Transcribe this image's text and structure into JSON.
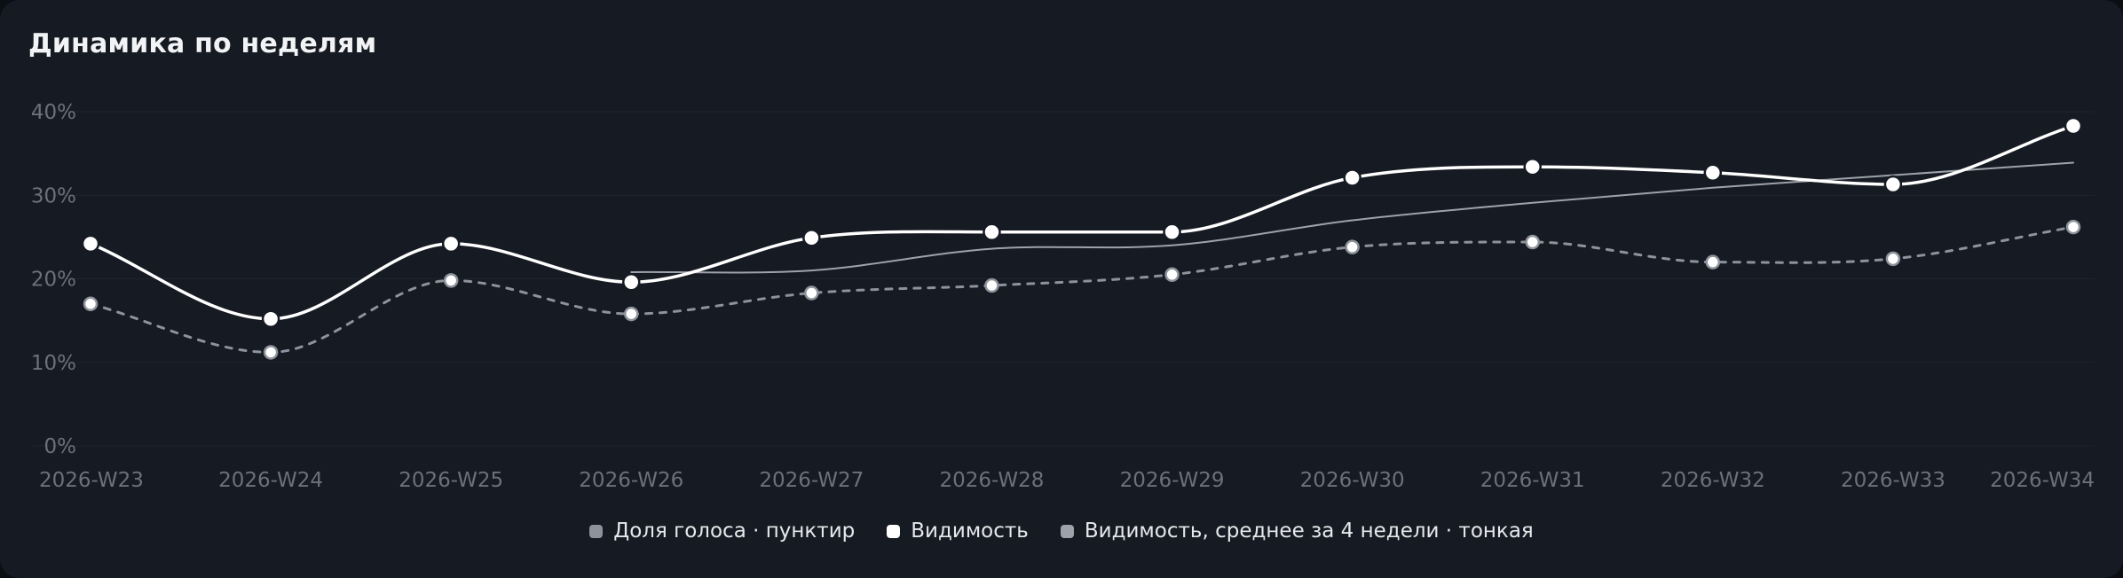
{
  "title": "Динамика по неделям",
  "legend": {
    "share": "Доля голоса · пунктир",
    "visibility": "Видимость",
    "avg": "Видимость, среднее за 4 недели · тонкая"
  },
  "colors": {
    "background": "#161a22",
    "share": "#8e939b",
    "visibility": "#ffffff",
    "avg": "#9ea3ab",
    "grid": "#1f242d",
    "tick": "#6b717c"
  },
  "chart_data": {
    "type": "line",
    "title": "Динамика по неделям",
    "categories": [
      "2026-W23",
      "2026-W24",
      "2026-W25",
      "2026-W26",
      "2026-W27",
      "2026-W28",
      "2026-W29",
      "2026-W30",
      "2026-W31",
      "2026-W32",
      "2026-W33",
      "2026-W34"
    ],
    "ylim": [
      0,
      40
    ],
    "yticks": [
      "0%",
      "10%",
      "20%",
      "30%",
      "40%"
    ],
    "grid": true,
    "legend_position": "bottom",
    "series": [
      {
        "name": "Доля голоса · пунктир",
        "style": "dashed",
        "markers": true,
        "values": [
          17.0,
          11.2,
          19.8,
          15.8,
          18.3,
          19.2,
          20.5,
          23.8,
          24.4,
          22.0,
          22.4,
          26.2
        ]
      },
      {
        "name": "Видимость",
        "style": "solid",
        "markers": true,
        "values": [
          24.2,
          15.2,
          24.2,
          19.6,
          24.9,
          25.6,
          25.6,
          32.1,
          33.4,
          32.7,
          31.3,
          38.3
        ]
      },
      {
        "name": "Видимость, среднее за 4 недели · тонкая",
        "style": "thin",
        "markers": false,
        "values": [
          null,
          null,
          null,
          20.8,
          21.0,
          23.6,
          24.0,
          27.0,
          29.1,
          30.9,
          32.4,
          33.9
        ]
      }
    ]
  }
}
